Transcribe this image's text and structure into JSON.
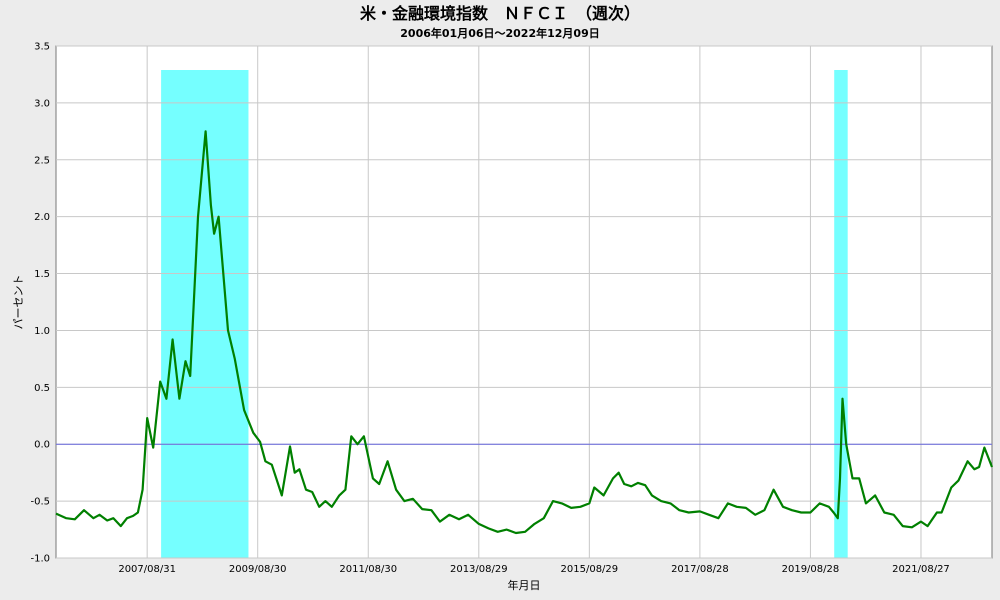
{
  "chart_data": {
    "type": "line",
    "title": "米・金融環境指数　ＮＦＣＩ　（週次）",
    "subtitle": "2006年01月06日～2022年12月09日",
    "ylabel": "パーセント",
    "xlabel": "年月日",
    "ylim": [
      -1.0,
      3.5
    ],
    "yticks": [
      "3.5",
      "3.0",
      "2.5",
      "2.0",
      "1.5",
      "1.0",
      "0.5",
      "0.0",
      "-0.5",
      "-1.0"
    ],
    "xlim": [
      "2006-01-06",
      "2022-12-09"
    ],
    "xticks": [
      "2007/08/31",
      "2009/08/30",
      "2011/08/30",
      "2013/08/29",
      "2015/08/29",
      "2017/08/28",
      "2019/08/28",
      "2021/08/27"
    ],
    "grid": true,
    "zero_line": true,
    "colors": {
      "series": "#008000",
      "shade": "#66ffff",
      "zero": "#6666dd",
      "plot_bg": "#ffffff",
      "grid": "#c8c8c8"
    },
    "shaded_ranges": [
      {
        "start": "2007-12-01",
        "end": "2009-06-30"
      },
      {
        "start": "2020-02-01",
        "end": "2020-04-30"
      }
    ],
    "series": [
      {
        "points": [
          [
            "2006-01-06",
            -0.61
          ],
          [
            "2006-03-15",
            -0.65
          ],
          [
            "2006-05-10",
            -0.66
          ],
          [
            "2006-07-10",
            -0.58
          ],
          [
            "2006-09-10",
            -0.65
          ],
          [
            "2006-10-20",
            -0.62
          ],
          [
            "2006-12-10",
            -0.67
          ],
          [
            "2007-01-20",
            -0.65
          ],
          [
            "2007-03-10",
            -0.72
          ],
          [
            "2007-04-20",
            -0.65
          ],
          [
            "2007-05-30",
            -0.63
          ],
          [
            "2007-07-01",
            -0.6
          ],
          [
            "2007-08-01",
            -0.4
          ],
          [
            "2007-08-31",
            0.23
          ],
          [
            "2007-10-10",
            -0.03
          ],
          [
            "2007-11-25",
            0.55
          ],
          [
            "2008-01-05",
            0.4
          ],
          [
            "2008-02-15",
            0.92
          ],
          [
            "2008-03-31",
            0.4
          ],
          [
            "2008-05-10",
            0.73
          ],
          [
            "2008-06-10",
            0.6
          ],
          [
            "2008-08-01",
            2.0
          ],
          [
            "2008-09-20",
            2.75
          ],
          [
            "2008-10-25",
            2.1
          ],
          [
            "2008-11-15",
            1.85
          ],
          [
            "2008-12-15",
            2.0
          ],
          [
            "2009-02-15",
            1.0
          ],
          [
            "2009-04-01",
            0.75
          ],
          [
            "2009-06-01",
            0.3
          ],
          [
            "2009-08-01",
            0.1
          ],
          [
            "2009-09-15",
            0.02
          ],
          [
            "2009-10-20",
            -0.15
          ],
          [
            "2009-12-01",
            -0.18
          ],
          [
            "2010-02-05",
            -0.45
          ],
          [
            "2010-03-31",
            -0.02
          ],
          [
            "2010-05-01",
            -0.25
          ],
          [
            "2010-06-01",
            -0.22
          ],
          [
            "2010-07-15",
            -0.4
          ],
          [
            "2010-08-25",
            -0.42
          ],
          [
            "2010-10-10",
            -0.55
          ],
          [
            "2010-11-20",
            -0.5
          ],
          [
            "2011-01-01",
            -0.55
          ],
          [
            "2011-02-20",
            -0.45
          ],
          [
            "2011-04-01",
            -0.4
          ],
          [
            "2011-05-10",
            0.07
          ],
          [
            "2011-06-20",
            0.0
          ],
          [
            "2011-08-01",
            0.07
          ],
          [
            "2011-09-30",
            -0.3
          ],
          [
            "2011-11-10",
            -0.35
          ],
          [
            "2012-01-05",
            -0.15
          ],
          [
            "2012-03-01",
            -0.4
          ],
          [
            "2012-04-25",
            -0.5
          ],
          [
            "2012-06-20",
            -0.48
          ],
          [
            "2012-08-20",
            -0.57
          ],
          [
            "2012-10-20",
            -0.58
          ],
          [
            "2012-12-15",
            -0.68
          ],
          [
            "2013-02-15",
            -0.62
          ],
          [
            "2013-04-20",
            -0.66
          ],
          [
            "2013-06-20",
            -0.62
          ],
          [
            "2013-08-29",
            -0.7
          ],
          [
            "2013-11-01",
            -0.74
          ],
          [
            "2014-01-01",
            -0.77
          ],
          [
            "2014-03-01",
            -0.75
          ],
          [
            "2014-05-01",
            -0.78
          ],
          [
            "2014-07-01",
            -0.77
          ],
          [
            "2014-09-01",
            -0.7
          ],
          [
            "2014-11-01",
            -0.65
          ],
          [
            "2015-01-01",
            -0.5
          ],
          [
            "2015-03-01",
            -0.52
          ],
          [
            "2015-05-01",
            -0.56
          ],
          [
            "2015-07-01",
            -0.55
          ],
          [
            "2015-08-29",
            -0.52
          ],
          [
            "2015-10-01",
            -0.38
          ],
          [
            "2015-12-01",
            -0.45
          ],
          [
            "2016-02-01",
            -0.3
          ],
          [
            "2016-03-10",
            -0.25
          ],
          [
            "2016-04-15",
            -0.35
          ],
          [
            "2016-06-01",
            -0.37
          ],
          [
            "2016-07-15",
            -0.34
          ],
          [
            "2016-09-01",
            -0.36
          ],
          [
            "2016-10-15",
            -0.45
          ],
          [
            "2016-12-15",
            -0.5
          ],
          [
            "2017-02-15",
            -0.52
          ],
          [
            "2017-04-15",
            -0.58
          ],
          [
            "2017-06-15",
            -0.6
          ],
          [
            "2017-08-28",
            -0.59
          ],
          [
            "2017-10-28",
            -0.62
          ],
          [
            "2017-12-28",
            -0.65
          ],
          [
            "2018-03-01",
            -0.52
          ],
          [
            "2018-04-28",
            -0.55
          ],
          [
            "2018-06-28",
            -0.56
          ],
          [
            "2018-08-28",
            -0.62
          ],
          [
            "2018-10-28",
            -0.58
          ],
          [
            "2018-12-28",
            -0.4
          ],
          [
            "2019-02-28",
            -0.55
          ],
          [
            "2019-04-28",
            -0.58
          ],
          [
            "2019-06-28",
            -0.6
          ],
          [
            "2019-08-28",
            -0.6
          ],
          [
            "2019-10-28",
            -0.52
          ],
          [
            "2019-12-28",
            -0.55
          ],
          [
            "2020-01-28",
            -0.6
          ],
          [
            "2020-02-25",
            -0.65
          ],
          [
            "2020-03-10",
            -0.3
          ],
          [
            "2020-03-27",
            0.4
          ],
          [
            "2020-04-20",
            0.0
          ],
          [
            "2020-06-01",
            -0.3
          ],
          [
            "2020-07-15",
            -0.3
          ],
          [
            "2020-08-28",
            -0.52
          ],
          [
            "2020-10-28",
            -0.45
          ],
          [
            "2020-12-28",
            -0.6
          ],
          [
            "2021-02-28",
            -0.62
          ],
          [
            "2021-04-28",
            -0.72
          ],
          [
            "2021-06-28",
            -0.73
          ],
          [
            "2021-08-27",
            -0.68
          ],
          [
            "2021-10-10",
            -0.72
          ],
          [
            "2021-12-10",
            -0.6
          ],
          [
            "2022-01-10",
            -0.6
          ],
          [
            "2022-03-15",
            -0.38
          ],
          [
            "2022-05-01",
            -0.32
          ],
          [
            "2022-07-01",
            -0.15
          ],
          [
            "2022-08-15",
            -0.22
          ],
          [
            "2022-09-15",
            -0.2
          ],
          [
            "2022-10-20",
            -0.03
          ],
          [
            "2022-12-09",
            -0.2
          ]
        ]
      }
    ]
  }
}
